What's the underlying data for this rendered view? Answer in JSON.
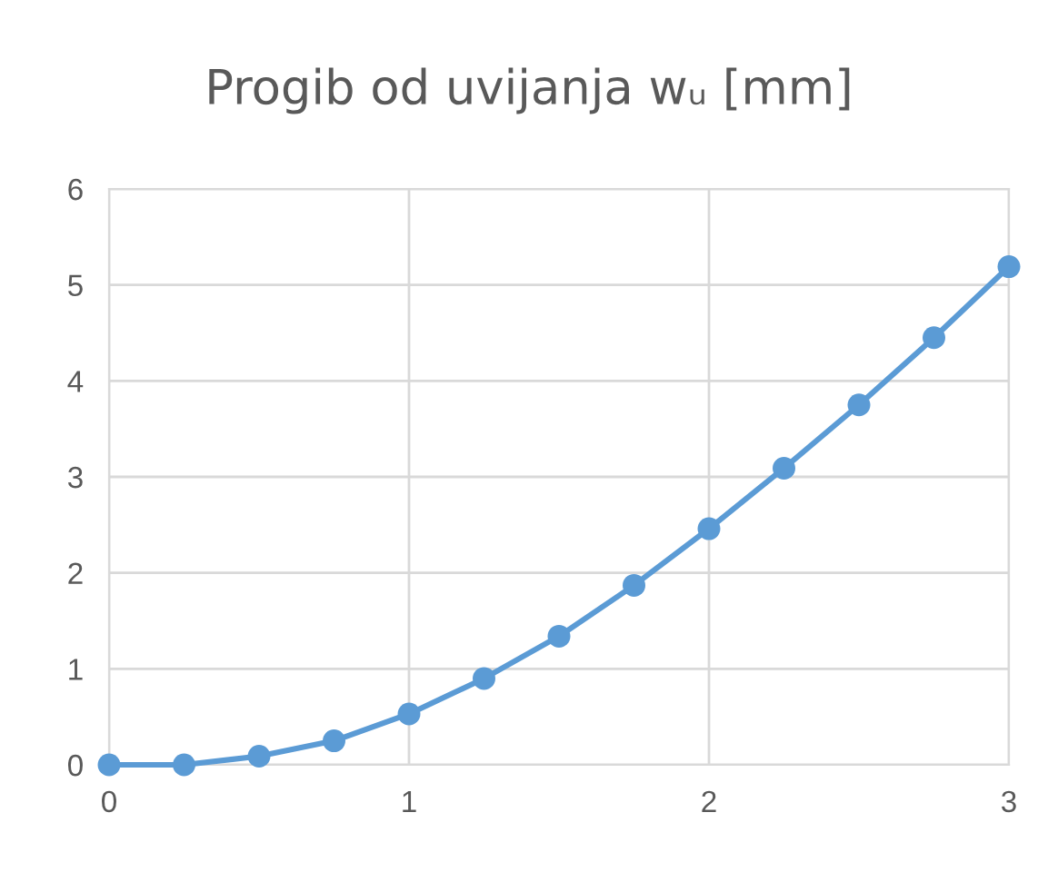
{
  "chart_data": {
    "type": "line",
    "title": "Progib od uvijanja wᵤ [mm]",
    "x": [
      0,
      0.25,
      0.5,
      0.75,
      1,
      1.25,
      1.5,
      1.75,
      2,
      2.25,
      2.5,
      2.75,
      3
    ],
    "series": [
      {
        "color": "#5b9bd5",
        "values": [
          0,
          0,
          0.09,
          0.25,
          0.53,
          0.9,
          1.34,
          1.87,
          2.46,
          3.09,
          3.75,
          4.45,
          5.19
        ]
      }
    ],
    "xlim": [
      0,
      3
    ],
    "xticks": [
      0,
      1,
      2,
      3
    ],
    "ylim": [
      0,
      6
    ],
    "yticks": [
      0,
      1,
      2,
      3,
      4,
      5,
      6
    ],
    "grid": true,
    "marker": "circle",
    "line_style": "solid"
  }
}
